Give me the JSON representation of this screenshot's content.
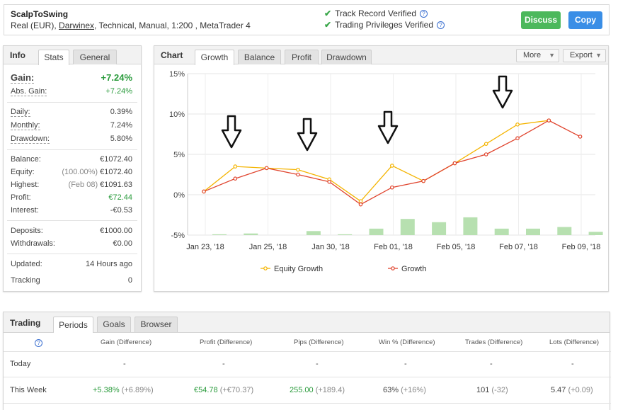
{
  "header": {
    "title": "ScalpToSwing",
    "sub_prefix": "Real (EUR),",
    "broker": "Darwinex",
    "sub_suffix": ", Technical, Manual, 1:200 , MetaTrader 4",
    "verified_1": "Track Record Verified",
    "verified_2": "Trading Privileges Verified",
    "discuss_label": "Discuss",
    "copy_label": "Copy",
    "discuss_color": "#4cb85c",
    "copy_color": "#3a8ee6"
  },
  "info": {
    "tabs": [
      "Info",
      "Stats",
      "General"
    ],
    "gain_label": "Gain:",
    "gain_value": "+7.24%",
    "abs_gain_label": "Abs. Gain:",
    "abs_gain_value": "+7.24%",
    "daily_label": "Daily:",
    "daily_value": "0.39%",
    "monthly_label": "Monthly:",
    "monthly_value": "7.24%",
    "drawdown_label": "Drawdown:",
    "drawdown_value": "5.80%",
    "balance_label": "Balance:",
    "balance_value": "€1072.40",
    "equity_label": "Equity:",
    "equity_pct": "(100.00%)",
    "equity_value": "€1072.40",
    "highest_label": "Highest:",
    "highest_date": "(Feb 08)",
    "highest_value": "€1091.63",
    "profit_label": "Profit:",
    "profit_value": "€72.44",
    "interest_label": "Interest:",
    "interest_value": "-€0.53",
    "deposits_label": "Deposits:",
    "deposits_value": "€1000.00",
    "withdrawals_label": "Withdrawals:",
    "withdrawals_value": "€0.00",
    "updated_label": "Updated:",
    "updated_value": "14 Hours ago",
    "tracking_label": "Tracking",
    "tracking_value": "0"
  },
  "chart_panel": {
    "title": "Chart",
    "tabs": [
      "Growth",
      "Balance",
      "Profit",
      "Drawdown"
    ],
    "more_label": "More",
    "export_label": "Export"
  },
  "chart_data": {
    "type": "line",
    "y_ticks": [
      "15%",
      "10%",
      "5%",
      "0%",
      "-5%"
    ],
    "ylim": [
      -5,
      15
    ],
    "x_labels": [
      "Jan 23, '18",
      "Jan 25, '18",
      "Jan 30, '18",
      "Feb 01, '18",
      "Feb 05, '18",
      "Feb 07, '18",
      "Feb 09, '18"
    ],
    "series": [
      {
        "name": "Equity Growth",
        "color": "#f4b400",
        "values": [
          0.4,
          3.5,
          3.3,
          3.1,
          1.9,
          -0.8,
          3.6,
          1.7,
          3.9,
          6.3,
          8.7,
          9.2,
          null
        ]
      },
      {
        "name": "Growth",
        "color": "#e0442e",
        "values": [
          0.4,
          2.0,
          3.3,
          2.5,
          1.6,
          -1.2,
          0.9,
          1.7,
          3.9,
          5.0,
          7.0,
          9.2,
          7.2
        ]
      }
    ],
    "bars": [
      -4.9,
      -4.8,
      null,
      -4.5,
      -4.9,
      -4.2,
      -3.0,
      -3.4,
      -2.8,
      -4.2,
      -4.2,
      -4.0,
      -4.6
    ],
    "bar_color": "#b7e0b0",
    "grid": true,
    "legend": "bottom"
  },
  "trading": {
    "title": "Trading",
    "tabs": [
      "Periods",
      "Goals",
      "Browser"
    ],
    "headers": [
      "Gain (Difference)",
      "Profit (Difference)",
      "Pips (Difference)",
      "Win % (Difference)",
      "Trades (Difference)",
      "Lots (Difference)"
    ],
    "today": {
      "label": "Today",
      "gain": "-",
      "profit": "-",
      "pips": "-",
      "win": "-",
      "trades": "-",
      "lots": "-"
    },
    "week": {
      "label": "This Week",
      "gain": "+5.38%",
      "gain_diff": "(+6.89%)",
      "profit": "€54.78",
      "profit_diff": "(+€70.37)",
      "pips": "255.00",
      "pips_diff": "(+189.4)",
      "win": "63%",
      "win_diff": "(+16%)",
      "trades": "101",
      "trades_diff": "(-32)",
      "lots": "5.47",
      "lots_diff": "(+0.09)"
    }
  }
}
